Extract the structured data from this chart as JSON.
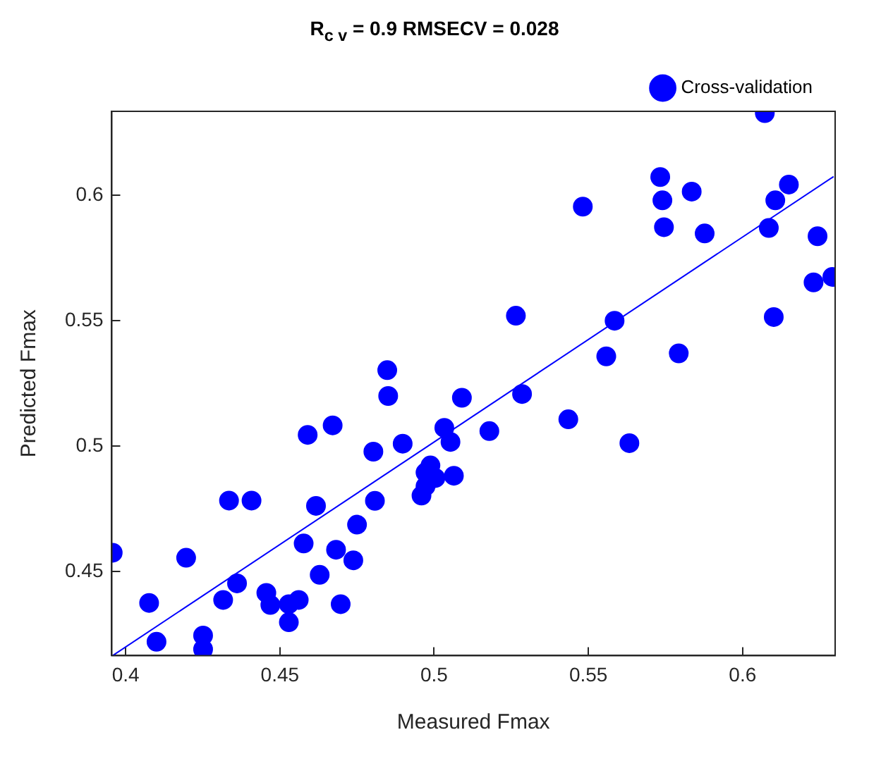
{
  "chart_data": {
    "type": "scatter",
    "title": "R$_{c v}$ = 0.9 RMSECV = 0.028",
    "xlabel": "Measured Fmax",
    "ylabel": "Predicted Fmax",
    "xlim": [
      0.3955,
      0.63
    ],
    "ylim": [
      0.4165,
      0.6335
    ],
    "xticks": [
      0.4,
      0.45,
      0.5,
      0.55,
      0.6
    ],
    "yticks": [
      0.45,
      0.5,
      0.55,
      0.6
    ],
    "grid": false,
    "legend": "top right",
    "marker": "circle",
    "series": [
      {
        "name": "Cross-validation",
        "color": "#0000ff",
        "x": [
          0.3958,
          0.4076,
          0.41,
          0.4196,
          0.4251,
          0.4251,
          0.4316,
          0.4335,
          0.4408,
          0.4361,
          0.4456,
          0.4469,
          0.4529,
          0.4561,
          0.4529,
          0.4577,
          0.4629,
          0.4617,
          0.459,
          0.4682,
          0.4738,
          0.4697,
          0.475,
          0.4808,
          0.4803,
          0.4671,
          0.4848,
          0.4851,
          0.4898,
          0.509,
          0.5033,
          0.5053,
          0.5179,
          0.5285,
          0.4988,
          0.4972,
          0.5004,
          0.5064,
          0.4972,
          0.4959,
          0.5265,
          0.6072,
          0.5733,
          0.5482,
          0.574,
          0.5835,
          0.615,
          0.6106,
          0.5745,
          0.5877,
          0.6085,
          0.6243,
          0.623,
          0.6291,
          0.6101,
          0.5585,
          0.5558,
          0.5793,
          0.5435,
          0.5633
        ],
        "values": [
          0.4575,
          0.4375,
          0.422,
          0.4555,
          0.4245,
          0.419,
          0.4387,
          0.4783,
          0.4783,
          0.4453,
          0.4415,
          0.4367,
          0.437,
          0.4387,
          0.4298,
          0.4612,
          0.4487,
          0.4762,
          0.5045,
          0.4587,
          0.4545,
          0.437,
          0.4687,
          0.4782,
          0.4978,
          0.5083,
          0.5303,
          0.52,
          0.501,
          0.5193,
          0.5073,
          0.5017,
          0.506,
          0.5208,
          0.4923,
          0.4895,
          0.4873,
          0.4882,
          0.484,
          0.4803,
          0.552,
          0.6328,
          0.6073,
          0.5955,
          0.598,
          0.6015,
          0.6043,
          0.598,
          0.5873,
          0.5848,
          0.587,
          0.5837,
          0.5653,
          0.5675,
          0.5515,
          0.55,
          0.5358,
          0.537,
          0.5107,
          0.5012
        ]
      },
      {
        "type": "line",
        "color": "#0000ff",
        "x": [
          0.3958,
          0.6295
        ],
        "values": [
          0.4165,
          0.6075
        ],
        "marker": "none"
      }
    ]
  }
}
